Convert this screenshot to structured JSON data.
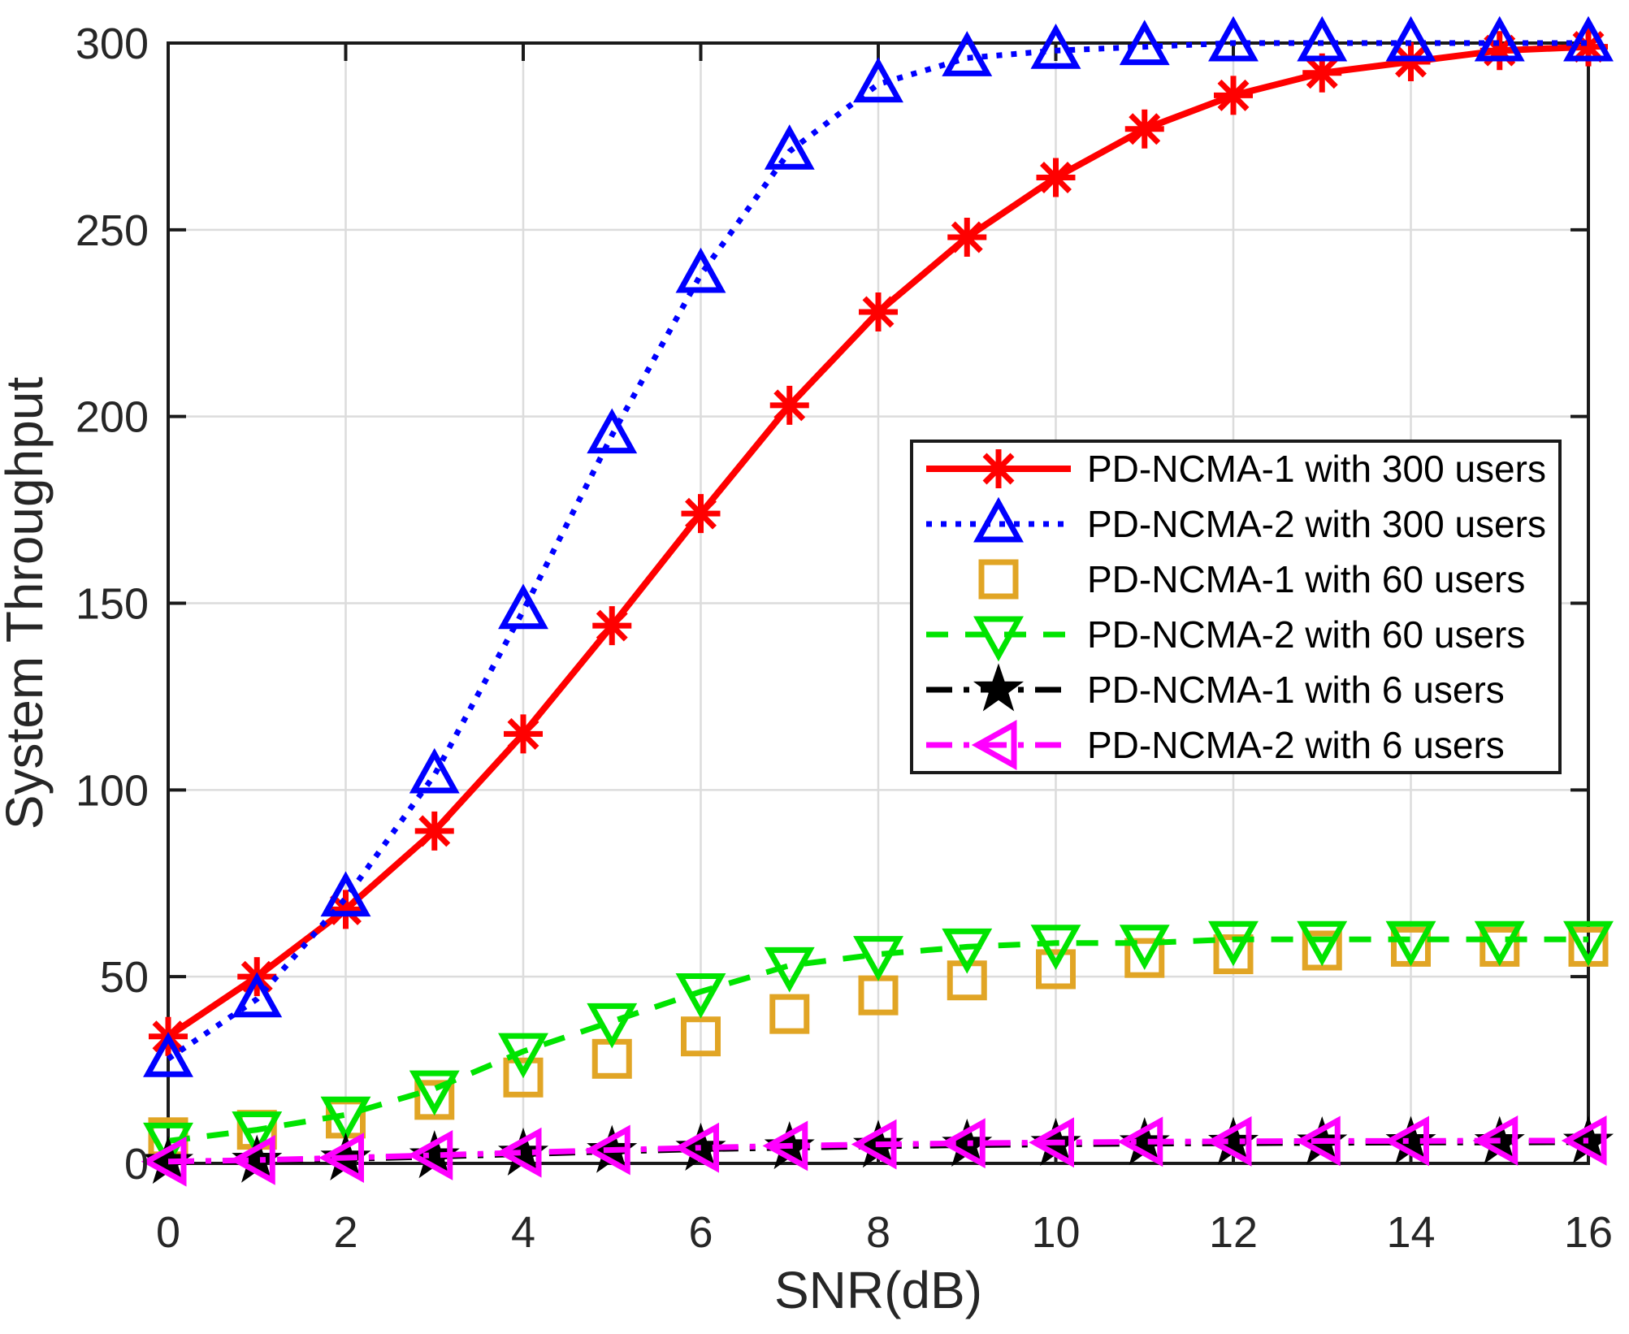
{
  "chart_data": {
    "type": "line",
    "title": "",
    "xlabel": "SNR(dB)",
    "ylabel": "System Throughput",
    "xlim": [
      0,
      16
    ],
    "ylim": [
      0,
      300
    ],
    "xticks": [
      0,
      2,
      4,
      6,
      8,
      10,
      12,
      14,
      16
    ],
    "yticks": [
      0,
      50,
      100,
      150,
      200,
      250,
      300
    ],
    "grid": true,
    "legend": {
      "position": "inside-right",
      "border": true
    },
    "colors": {
      "axis": "#1a1a1a",
      "tick_label": "#262626",
      "grid": "#dcdcdc",
      "background": "#ffffff",
      "legend_text": "#000000"
    },
    "x": [
      0,
      1,
      2,
      3,
      4,
      5,
      6,
      7,
      8,
      9,
      10,
      11,
      12,
      13,
      14,
      15,
      16
    ],
    "series": [
      {
        "name": "PD-NCMA-1 with 300 users",
        "color": "#ff0000",
        "line_style": "solid",
        "marker": "asterisk",
        "marker_filled": false,
        "values": [
          34,
          50,
          68,
          89,
          115,
          144,
          174,
          203,
          228,
          248,
          264,
          277,
          286,
          292,
          295,
          298,
          299
        ]
      },
      {
        "name": "PD-NCMA-2 with 300 users",
        "color": "#0000ff",
        "line_style": "dotted",
        "marker": "triangle-up",
        "marker_filled": false,
        "values": [
          28,
          44,
          71,
          104,
          148,
          195,
          238,
          271,
          289,
          296,
          298,
          299,
          300,
          300,
          300,
          300,
          300
        ]
      },
      {
        "name": "PD-NCMA-1 with 60 users",
        "color": "#e1a525",
        "line_style": "none",
        "marker": "square",
        "marker_filled": false,
        "values": [
          7,
          9,
          12,
          17,
          23,
          28,
          34,
          40,
          45,
          49,
          52,
          55,
          56,
          57,
          58,
          58,
          58
        ]
      },
      {
        "name": "PD-NCMA-2 with 60 users",
        "color": "#00e400",
        "line_style": "dashed",
        "marker": "triangle-down",
        "marker_filled": false,
        "values": [
          6,
          9,
          13,
          20,
          30,
          38,
          46,
          53,
          56,
          58,
          59,
          59,
          60,
          60,
          60,
          60,
          60
        ]
      },
      {
        "name": "PD-NCMA-1 with 6 users",
        "color": "#000000",
        "line_style": "dashdot",
        "marker": "star",
        "marker_filled": true,
        "values": [
          0.3,
          0.6,
          1.2,
          1.8,
          2.5,
          3.2,
          3.8,
          4.2,
          4.6,
          4.9,
          5.1,
          5.3,
          5.4,
          5.5,
          5.6,
          5.6,
          5.7
        ]
      },
      {
        "name": "PD-NCMA-2 with 6 users",
        "color": "#ff00ff",
        "line_style": "dashdot",
        "marker": "triangle-left",
        "marker_filled": false,
        "values": [
          0.5,
          0.9,
          1.5,
          2.2,
          2.9,
          3.6,
          4.2,
          4.7,
          5.1,
          5.4,
          5.6,
          5.8,
          5.9,
          6,
          6,
          6.1,
          6.1
        ]
      }
    ]
  }
}
